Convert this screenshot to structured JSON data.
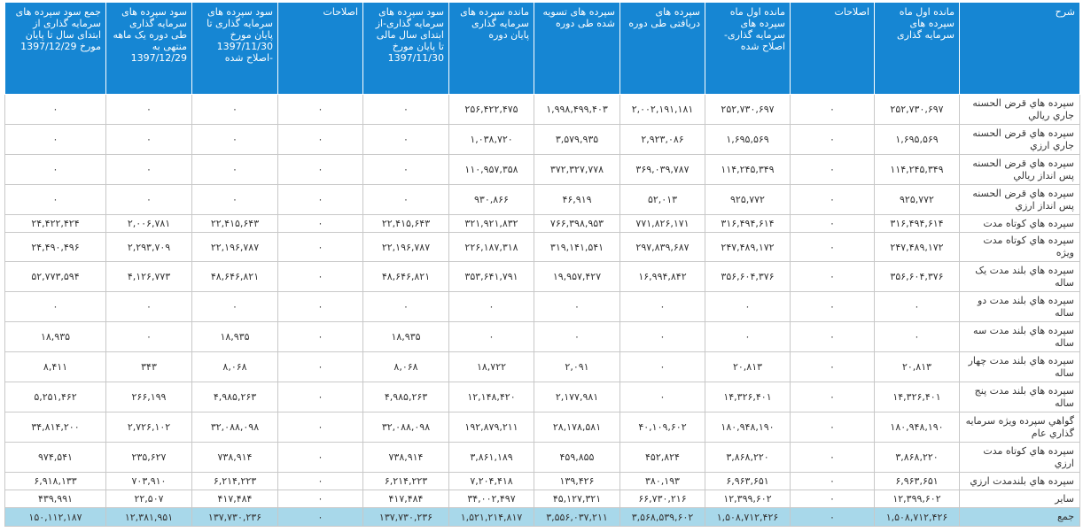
{
  "headers": [
    "شرح",
    "مانده اول ماه سپرده های سرمایه گذاری",
    "اصلاحات",
    "مانده اول ماه سپرده های سرمایه گذاری- اصلاح شده",
    "سپرده های دریافتی طی دوره",
    "سپرده های تسویه شده طی دوره",
    "مانده سپرده های سرمایه گذاری پایان دوره",
    "سود سپرده های سرمایه گذاری-از ابتدای سال مالی تا پایان مورخ 1397/11/30",
    "اصلاحات",
    "سود سپرده های سرمایه گذاری تا پایان مورخ 1397/11/30 -اصلاح شده",
    "سود سپرده های سرمایه گذاری طی دوره یک ماهه منتهی به 1397/12/29",
    "جمع سود سپرده های سرمایه گذاری از ابتدای سال تا پایان مورخ 1397/12/29"
  ],
  "rows": [
    [
      "سپرده هاي قرض الحسنه جاري ريالي",
      "۲۵۲,۷۳۰,۶۹۷",
      "۰",
      "۲۵۲,۷۳۰,۶۹۷",
      "۲,۰۰۲,۱۹۱,۱۸۱",
      "۱,۹۹۸,۴۹۹,۴۰۳",
      "۲۵۶,۴۲۲,۴۷۵",
      "۰",
      "۰",
      "۰",
      "۰",
      "۰"
    ],
    [
      "سپرده هاي قرض الحسنه جاري ارزي",
      "۱,۶۹۵,۵۶۹",
      "۰",
      "۱,۶۹۵,۵۶۹",
      "۲,۹۲۳,۰۸۶",
      "۳,۵۷۹,۹۳۵",
      "۱,۰۳۸,۷۲۰",
      "۰",
      "۰",
      "۰",
      "۰",
      "۰"
    ],
    [
      "سپرده هاي قرض الحسنه پس انداز ريالي",
      "۱۱۴,۲۴۵,۳۴۹",
      "۰",
      "۱۱۴,۲۴۵,۳۴۹",
      "۳۶۹,۰۳۹,۷۸۷",
      "۳۷۲,۳۲۷,۷۷۸",
      "۱۱۰,۹۵۷,۳۵۸",
      "۰",
      "۰",
      "۰",
      "۰",
      "۰"
    ],
    [
      "سپرده هاي قرض الحسنه پس انداز ارزي",
      "۹۲۵,۷۷۲",
      "۰",
      "۹۲۵,۷۷۲",
      "۵۲,۰۱۳",
      "۴۶,۹۱۹",
      "۹۳۰,۸۶۶",
      "۰",
      "۰",
      "۰",
      "۰",
      "۰"
    ],
    [
      "سپرده هاي كوتاه مدت",
      "۳۱۶,۴۹۴,۶۱۴",
      "۰",
      "۳۱۶,۴۹۴,۶۱۴",
      "۷۷۱,۸۲۶,۱۷۱",
      "۷۶۶,۳۹۸,۹۵۳",
      "۳۲۱,۹۲۱,۸۳۲",
      "۲۲,۴۱۵,۶۴۳",
      "۰",
      "۲۲,۴۱۵,۶۴۳",
      "۲,۰۰۶,۷۸۱",
      "۲۴,۴۲۲,۴۲۴"
    ],
    [
      "سپرده هاي كوتاه مدت ويژه",
      "۲۴۷,۴۸۹,۱۷۲",
      "۰",
      "۲۴۷,۴۸۹,۱۷۲",
      "۲۹۷,۸۳۹,۶۸۷",
      "۳۱۹,۱۴۱,۵۴۱",
      "۲۲۶,۱۸۷,۳۱۸",
      "۲۲,۱۹۶,۷۸۷",
      "۰",
      "۲۲,۱۹۶,۷۸۷",
      "۲,۲۹۳,۷۰۹",
      "۲۴,۴۹۰,۴۹۶"
    ],
    [
      "سپرده هاي بلند مدت يک ساله",
      "۳۵۶,۶۰۴,۳۷۶",
      "۰",
      "۳۵۶,۶۰۴,۳۷۶",
      "۱۶,۹۹۴,۸۴۲",
      "۱۹,۹۵۷,۴۲۷",
      "۳۵۳,۶۴۱,۷۹۱",
      "۴۸,۶۴۶,۸۲۱",
      "۰",
      "۴۸,۶۴۶,۸۲۱",
      "۴,۱۲۶,۷۷۳",
      "۵۲,۷۷۳,۵۹۴"
    ],
    [
      "سپرده هاي بلند مدت دو ساله",
      "۰",
      "۰",
      "۰",
      "۰",
      "۰",
      "۰",
      "۰",
      "۰",
      "۰",
      "۰",
      "۰"
    ],
    [
      "سپرده هاي بلند مدت سه ساله",
      "۰",
      "۰",
      "۰",
      "۰",
      "۰",
      "۰",
      "۱۸,۹۳۵",
      "۰",
      "۱۸,۹۳۵",
      "۰",
      "۱۸,۹۳۵"
    ],
    [
      "سپرده هاي بلند مدت چهار ساله",
      "۲۰,۸۱۳",
      "۰",
      "۲۰,۸۱۳",
      "۰",
      "۲,۰۹۱",
      "۱۸,۷۲۲",
      "۸,۰۶۸",
      "۰",
      "۸,۰۶۸",
      "۳۴۳",
      "۸,۴۱۱"
    ],
    [
      "سپرده هاي بلند مدت پنج ساله",
      "۱۴,۳۲۶,۴۰۱",
      "۰",
      "۱۴,۳۲۶,۴۰۱",
      "۰",
      "۲,۱۷۷,۹۸۱",
      "۱۲,۱۴۸,۴۲۰",
      "۴,۹۸۵,۲۶۳",
      "۰",
      "۴,۹۸۵,۲۶۳",
      "۲۶۶,۱۹۹",
      "۵,۲۵۱,۴۶۲"
    ],
    [
      "گواهي سپرده ويژه سرمايه گذاري عام",
      "۱۸۰,۹۴۸,۱۹۰",
      "۰",
      "۱۸۰,۹۴۸,۱۹۰",
      "۴۰,۱۰۹,۶۰۲",
      "۲۸,۱۷۸,۵۸۱",
      "۱۹۲,۸۷۹,۲۱۱",
      "۳۲,۰۸۸,۰۹۸",
      "۰",
      "۳۲,۰۸۸,۰۹۸",
      "۲,۷۲۶,۱۰۲",
      "۳۴,۸۱۴,۲۰۰"
    ],
    [
      "سپرده هاي كوتاه مدت ارزي",
      "۳,۸۶۸,۲۲۰",
      "۰",
      "۳,۸۶۸,۲۲۰",
      "۴۵۲,۸۲۴",
      "۴۵۹,۸۵۵",
      "۳,۸۶۱,۱۸۹",
      "۷۳۸,۹۱۴",
      "۰",
      "۷۳۸,۹۱۴",
      "۲۳۵,۶۲۷",
      "۹۷۴,۵۴۱"
    ],
    [
      "سپرده هاي بلندمدت ارزي",
      "۶,۹۶۳,۶۵۱",
      "۰",
      "۶,۹۶۳,۶۵۱",
      "۳۸۰,۱۹۳",
      "۱۳۹,۴۲۶",
      "۷,۲۰۴,۴۱۸",
      "۶,۲۱۴,۲۲۳",
      "۰",
      "۶,۲۱۴,۲۲۳",
      "۷۰۳,۹۱۰",
      "۶,۹۱۸,۱۳۳"
    ],
    [
      "ساير",
      "۱۲,۳۹۹,۶۰۲",
      "۰",
      "۱۲,۳۹۹,۶۰۲",
      "۶۶,۷۳۰,۲۱۶",
      "۴۵,۱۲۷,۳۲۱",
      "۳۴,۰۰۲,۴۹۷",
      "۴۱۷,۴۸۴",
      "۰",
      "۴۱۷,۴۸۴",
      "۲۲,۵۰۷",
      "۴۳۹,۹۹۱"
    ]
  ],
  "total": [
    "جمع",
    "۱,۵۰۸,۷۱۲,۴۲۶",
    "۰",
    "۱,۵۰۸,۷۱۲,۴۲۶",
    "۳,۵۶۸,۵۳۹,۶۰۲",
    "۳,۵۵۶,۰۳۷,۲۱۱",
    "۱,۵۲۱,۲۱۴,۸۱۷",
    "۱۳۷,۷۳۰,۲۳۶",
    "۰",
    "۱۳۷,۷۳۰,۲۳۶",
    "۱۲,۳۸۱,۹۵۱",
    "۱۵۰,۱۱۲,۱۸۷"
  ]
}
